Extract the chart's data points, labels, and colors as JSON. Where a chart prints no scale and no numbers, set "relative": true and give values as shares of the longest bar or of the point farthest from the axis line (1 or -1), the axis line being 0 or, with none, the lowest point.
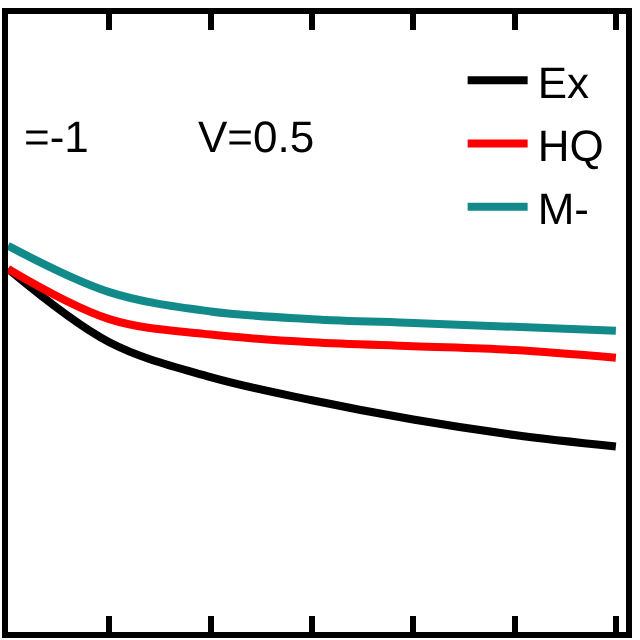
{
  "chart_data": {
    "type": "line",
    "relative": true,
    "legend": "top right",
    "marker": "none",
    "line_style": "solid",
    "categories": [
      null,
      null,
      null,
      null,
      null,
      null,
      null
    ],
    "annotations": [
      "=-1",
      "V=0.5"
    ],
    "series": [
      {
        "name": "Ex",
        "color": "#000000",
        "values": [
          0.94,
          0.75,
          0.66,
          0.6,
          0.55,
          0.51,
          0.48
        ]
      },
      {
        "name": "HQ",
        "color": "#ff0000",
        "values": [
          0.94,
          0.81,
          0.77,
          0.75,
          0.74,
          0.73,
          0.71
        ]
      },
      {
        "name": "M-",
        "color": "#138a8a",
        "values": [
          1,
          0.88,
          0.83,
          0.81,
          0.8,
          0.79,
          0.78
        ]
      }
    ]
  }
}
